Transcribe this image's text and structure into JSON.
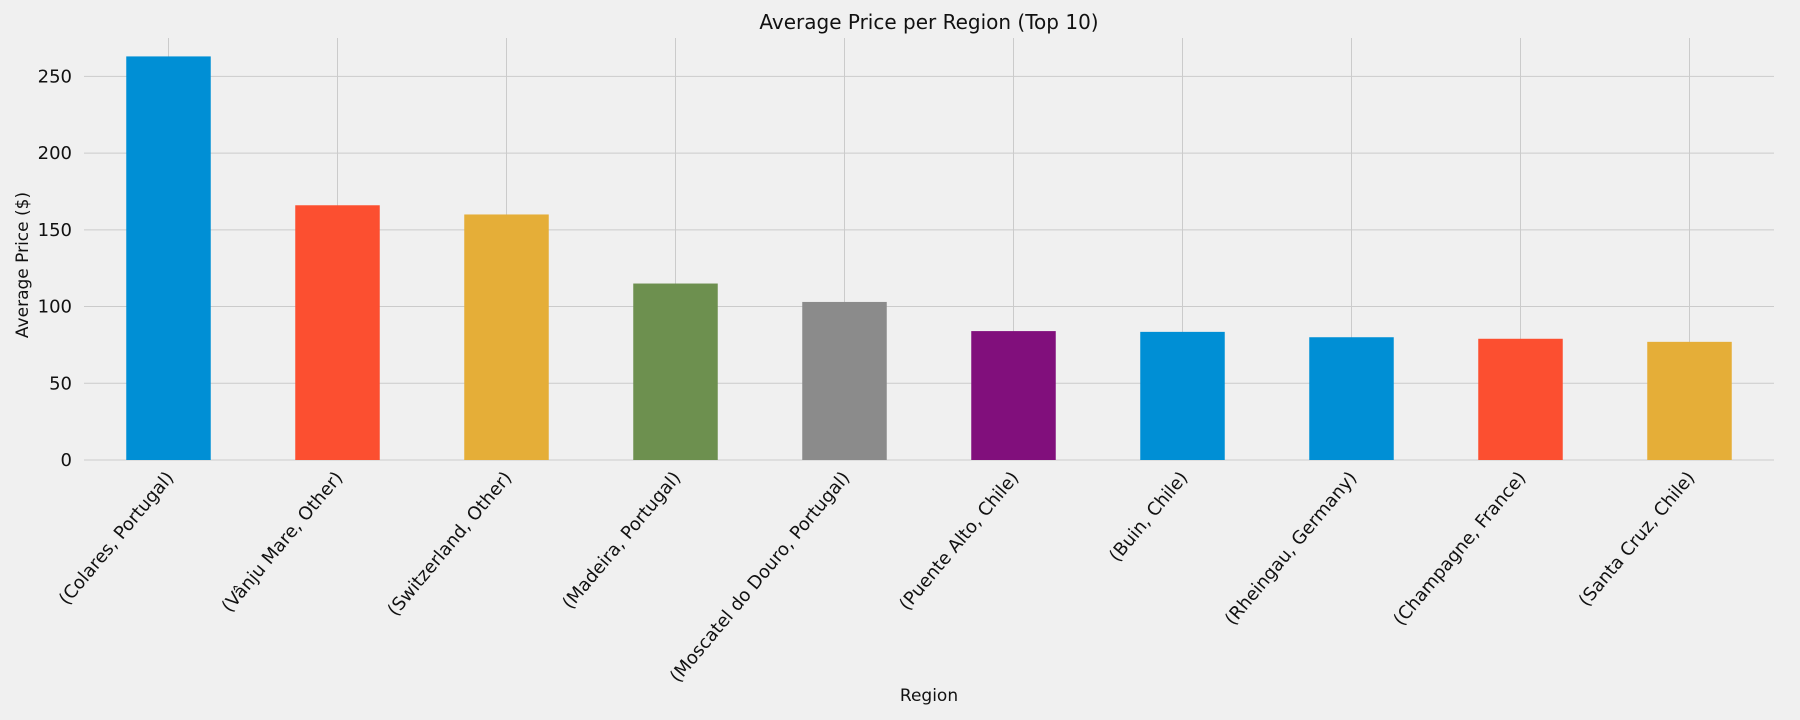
{
  "chart_data": {
    "type": "bar",
    "title": "Average Price per Region (Top 10)",
    "xlabel": "Region",
    "ylabel": "Average Price ($)",
    "ylim": [
      0,
      275
    ],
    "yticks": [
      0,
      50,
      100,
      150,
      200,
      250
    ],
    "grid": true,
    "categories": [
      "(Colares, Portugal)",
      "(Vânju Mare, Other)",
      "(Switzerland, Other)",
      "(Madeira, Portugal)",
      "(Moscatel do Douro, Portugal)",
      "(Puente Alto, Chile)",
      "(Buin, Chile)",
      "(Rheingau, Germany)",
      "(Champagne, France)",
      "(Santa Cruz, Chile)"
    ],
    "values": [
      263,
      166,
      160,
      115,
      103,
      84,
      83.5,
      80,
      79,
      77
    ],
    "colors": [
      "#008fd5",
      "#fc4f30",
      "#e5ae38",
      "#6d904f",
      "#8b8b8b",
      "#810f7c",
      "#008fd5",
      "#008fd5",
      "#fc4f30",
      "#e5ae38"
    ]
  }
}
